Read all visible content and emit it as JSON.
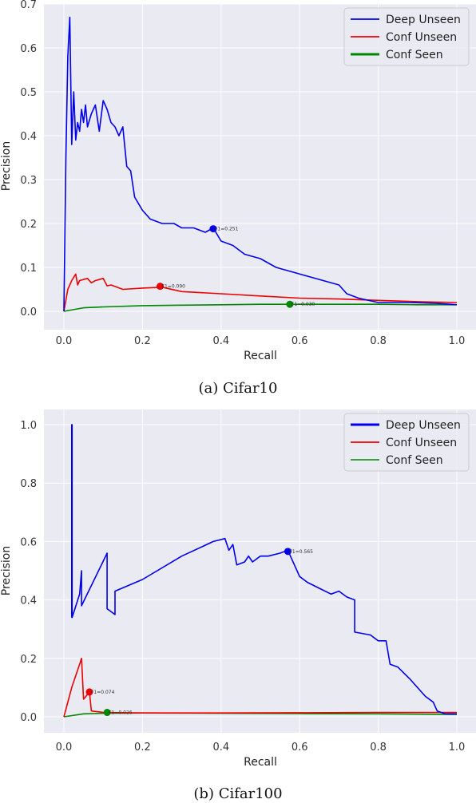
{
  "chart_data": [
    {
      "type": "line",
      "caption": "(a) Cifar10",
      "xlabel": "Recall",
      "ylabel": "Precision",
      "xlim": [
        0,
        1.0
      ],
      "ylim": [
        0,
        0.7
      ],
      "xticks": [
        "0.0",
        "0.2",
        "0.4",
        "0.6",
        "0.8",
        "1.0"
      ],
      "xtick_values": [
        0,
        0.2,
        0.4,
        0.6,
        0.8,
        1.0
      ],
      "yticks": [
        "0.0",
        "0.1",
        "0.2",
        "0.3",
        "0.4",
        "0.5",
        "0.6",
        "0.7"
      ],
      "ytick_values": [
        0,
        0.1,
        0.2,
        0.3,
        0.4,
        0.5,
        0.6,
        0.7
      ],
      "grid": true,
      "legend_position": "top-right",
      "series": [
        {
          "name": "Deep Unseen",
          "color": "#0000ee",
          "x": [
            0.0,
            0.005,
            0.01,
            0.015,
            0.02,
            0.025,
            0.03,
            0.035,
            0.04,
            0.045,
            0.05,
            0.055,
            0.06,
            0.07,
            0.08,
            0.09,
            0.1,
            0.11,
            0.12,
            0.13,
            0.14,
            0.15,
            0.16,
            0.17,
            0.18,
            0.2,
            0.22,
            0.25,
            0.28,
            0.3,
            0.33,
            0.36,
            0.38,
            0.4,
            0.43,
            0.46,
            0.5,
            0.54,
            0.58,
            0.62,
            0.66,
            0.7,
            0.72,
            0.75,
            0.8,
            0.88,
            0.95,
            1.0
          ],
          "y": [
            0.0,
            0.35,
            0.58,
            0.67,
            0.38,
            0.5,
            0.39,
            0.43,
            0.41,
            0.46,
            0.43,
            0.47,
            0.42,
            0.45,
            0.47,
            0.41,
            0.48,
            0.46,
            0.43,
            0.42,
            0.4,
            0.42,
            0.33,
            0.32,
            0.26,
            0.23,
            0.21,
            0.2,
            0.2,
            0.19,
            0.19,
            0.18,
            0.19,
            0.16,
            0.15,
            0.13,
            0.12,
            0.1,
            0.09,
            0.08,
            0.07,
            0.06,
            0.04,
            0.03,
            0.02,
            0.02,
            0.018,
            0.015
          ],
          "marker": {
            "x": 0.38,
            "y": 0.188,
            "label": "F1=0.251"
          }
        },
        {
          "name": "Conf Unseen",
          "color": "#ee0000",
          "x": [
            0.0,
            0.01,
            0.02,
            0.03,
            0.035,
            0.04,
            0.06,
            0.07,
            0.08,
            0.1,
            0.11,
            0.12,
            0.15,
            0.2,
            0.25,
            0.3,
            0.4,
            0.5,
            0.6,
            0.7,
            0.8,
            0.9,
            1.0
          ],
          "y": [
            0.0,
            0.05,
            0.07,
            0.085,
            0.06,
            0.07,
            0.075,
            0.065,
            0.07,
            0.075,
            0.058,
            0.06,
            0.05,
            0.053,
            0.055,
            0.045,
            0.04,
            0.035,
            0.03,
            0.028,
            0.025,
            0.022,
            0.02
          ],
          "marker": {
            "x": 0.245,
            "y": 0.057,
            "label": "F1=0.090"
          }
        },
        {
          "name": "Conf Seen",
          "color": "#008800",
          "x": [
            0.0,
            0.05,
            0.1,
            0.2,
            0.3,
            0.4,
            0.5,
            0.58,
            0.7,
            0.8,
            0.9,
            1.0
          ],
          "y": [
            0.0,
            0.008,
            0.01,
            0.013,
            0.014,
            0.015,
            0.016,
            0.016,
            0.016,
            0.016,
            0.015,
            0.015
          ],
          "marker": {
            "x": 0.575,
            "y": 0.016,
            "label": "F1=0.030"
          }
        }
      ]
    },
    {
      "type": "line",
      "caption": "(b) Cifar100",
      "xlabel": "Recall",
      "ylabel": "Precision",
      "xlim": [
        0,
        1.0
      ],
      "ylim": [
        0,
        1.0
      ],
      "xticks": [
        "0.0",
        "0.2",
        "0.4",
        "0.6",
        "0.8",
        "1.0"
      ],
      "xtick_values": [
        0,
        0.2,
        0.4,
        0.6,
        0.8,
        1.0
      ],
      "yticks": [
        "0.0",
        "0.2",
        "0.4",
        "0.6",
        "0.8",
        "1.0"
      ],
      "ytick_values": [
        0,
        0.2,
        0.4,
        0.6,
        0.8,
        1.0
      ],
      "grid": true,
      "legend_position": "top-right",
      "series": [
        {
          "name": "Deep Unseen",
          "color": "#0000ee",
          "x": [
            0.02,
            0.02,
            0.021,
            0.021,
            0.04,
            0.045,
            0.045,
            0.11,
            0.11,
            0.13,
            0.13,
            0.2,
            0.3,
            0.38,
            0.41,
            0.42,
            0.43,
            0.44,
            0.46,
            0.47,
            0.48,
            0.5,
            0.52,
            0.55,
            0.57,
            0.6,
            0.62,
            0.65,
            0.68,
            0.7,
            0.72,
            0.74,
            0.74,
            0.78,
            0.8,
            0.82,
            0.83,
            0.85,
            0.88,
            0.9,
            0.92,
            0.94,
            0.95,
            0.97,
            1.0
          ],
          "y": [
            0.34,
            1.0,
            1.0,
            0.34,
            0.42,
            0.5,
            0.38,
            0.56,
            0.37,
            0.35,
            0.43,
            0.47,
            0.55,
            0.6,
            0.61,
            0.57,
            0.59,
            0.52,
            0.53,
            0.55,
            0.53,
            0.55,
            0.55,
            0.56,
            0.57,
            0.48,
            0.46,
            0.44,
            0.42,
            0.43,
            0.41,
            0.4,
            0.29,
            0.28,
            0.26,
            0.26,
            0.18,
            0.17,
            0.13,
            0.1,
            0.07,
            0.05,
            0.02,
            0.01,
            0.01
          ],
          "marker": {
            "x": 0.57,
            "y": 0.566,
            "label": "F1=0.565"
          }
        },
        {
          "name": "Conf Unseen",
          "color": "#ee0000",
          "x": [
            0.0,
            0.02,
            0.04,
            0.045,
            0.05,
            0.065,
            0.07,
            0.1,
            0.2,
            0.4,
            0.6,
            0.8,
            1.0
          ],
          "y": [
            0.0,
            0.1,
            0.18,
            0.2,
            0.06,
            0.085,
            0.02,
            0.015,
            0.013,
            0.013,
            0.014,
            0.015,
            0.015
          ],
          "marker": {
            "x": 0.065,
            "y": 0.085,
            "label": "F1=0.074"
          }
        },
        {
          "name": "Conf Seen",
          "color": "#008800",
          "x": [
            0.0,
            0.05,
            0.1,
            0.2,
            0.4,
            0.6,
            0.8,
            1.0
          ],
          "y": [
            0.0,
            0.01,
            0.012,
            0.013,
            0.012,
            0.011,
            0.01,
            0.008
          ],
          "marker": {
            "x": 0.11,
            "y": 0.015,
            "label": "F1=0.026"
          }
        }
      ]
    }
  ]
}
